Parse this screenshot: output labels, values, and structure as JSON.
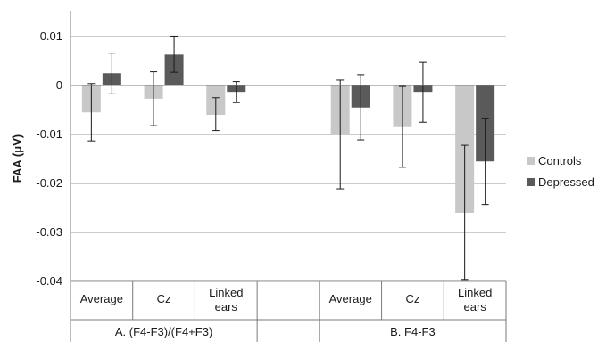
{
  "chart_data": {
    "type": "bar",
    "xlabel": "",
    "ylabel": "FAA (μV)",
    "ylim": [
      -0.04,
      0.015
    ],
    "yticks": [
      0.01,
      0,
      -0.01,
      -0.02,
      -0.03,
      -0.04
    ],
    "ytick_labels": [
      "0.01",
      "0",
      "-0.01",
      "-0.02",
      "-0.03",
      "-0.04"
    ],
    "grid": true,
    "legend_position": "right",
    "groups": [
      {
        "label": "A. (F4-F3)/(F4+F3)",
        "categories": [
          "Average",
          "Cz",
          "Linked\nears"
        ]
      },
      {
        "label": "",
        "categories": [
          ""
        ]
      },
      {
        "label": "B. F4-F3",
        "categories": [
          "Average",
          "Cz",
          "Linked\nears"
        ]
      }
    ],
    "categories": [
      "Average",
      "Cz",
      "Linked ears",
      "",
      "Average",
      "Cz",
      "Linked ears"
    ],
    "series": [
      {
        "name": "Controls",
        "color": "#c8c8c8",
        "values": [
          -0.0055,
          -0.0027,
          -0.006,
          null,
          -0.01,
          -0.0085,
          -0.026
        ],
        "error_low": [
          -0.0113,
          -0.0082,
          -0.0092,
          null,
          -0.0211,
          -0.0167,
          -0.0396
        ],
        "error_high": [
          0.0004,
          0.0028,
          -0.0025,
          null,
          0.0011,
          -0.0002,
          -0.0122
        ]
      },
      {
        "name": "Depressed",
        "color": "#5a5a5a",
        "values": [
          0.0025,
          0.0063,
          -0.0013,
          null,
          -0.0045,
          -0.0013,
          -0.0155
        ],
        "error_low": [
          -0.0017,
          0.0027,
          -0.0035,
          null,
          -0.0111,
          -0.0075,
          -0.0243
        ],
        "error_high": [
          0.0066,
          0.0101,
          0.0008,
          null,
          0.0022,
          0.0047,
          -0.0068
        ]
      }
    ]
  }
}
